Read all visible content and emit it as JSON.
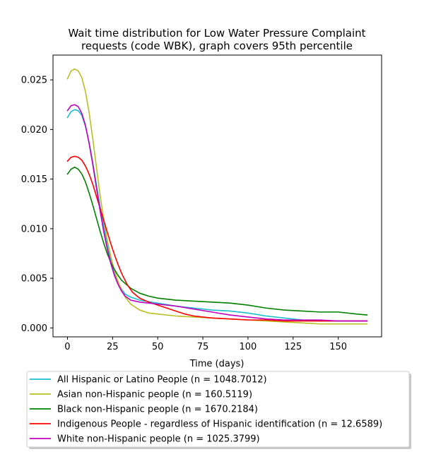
{
  "chart_data": {
    "type": "line",
    "title": "Wait time distribution  for Low Water Pressure Complaint requests (code WBK), graph covers 95th percentile",
    "title_lines": [
      "Wait time distribution  for Low Water Pressure Complaint",
      "requests (code WBK), graph covers 95th percentile"
    ],
    "xlabel": "Time (days)",
    "ylabel": "",
    "xlim": [
      -8,
      174
    ],
    "ylim": [
      -0.0009,
      0.0275
    ],
    "x_ticks": [
      0,
      25,
      50,
      75,
      100,
      125,
      150
    ],
    "y_ticks": [
      0.0,
      0.005,
      0.01,
      0.015,
      0.02,
      0.025
    ],
    "y_tick_labels": [
      "0.000",
      "0.005",
      "0.010",
      "0.015",
      "0.020",
      "0.025"
    ],
    "grid": false,
    "legend_position": "below-plot",
    "series": [
      {
        "name": "All Hispanic or Latino People (n = 1048.7012)",
        "color": "#17becf",
        "points": [
          [
            0,
            0.0212
          ],
          [
            2,
            0.0218
          ],
          [
            4,
            0.022
          ],
          [
            6,
            0.0219
          ],
          [
            8,
            0.0214
          ],
          [
            10,
            0.0203
          ],
          [
            12,
            0.0187
          ],
          [
            14,
            0.0167
          ],
          [
            16,
            0.0145
          ],
          [
            18,
            0.0123
          ],
          [
            20,
            0.0103
          ],
          [
            22,
            0.0085
          ],
          [
            24,
            0.0069
          ],
          [
            26,
            0.0056
          ],
          [
            28,
            0.0046
          ],
          [
            30,
            0.0039
          ],
          [
            32,
            0.0034
          ],
          [
            35,
            0.0031
          ],
          [
            40,
            0.0028
          ],
          [
            50,
            0.0025
          ],
          [
            60,
            0.0022
          ],
          [
            70,
            0.002
          ],
          [
            80,
            0.0018
          ],
          [
            90,
            0.0017
          ],
          [
            100,
            0.0015
          ],
          [
            110,
            0.0012
          ],
          [
            120,
            0.001
          ],
          [
            130,
            0.0008
          ],
          [
            140,
            0.0007
          ],
          [
            150,
            0.0007
          ],
          [
            160,
            0.0007
          ],
          [
            166,
            0.0007
          ]
        ]
      },
      {
        "name": "Asian non-Hispanic people (n = 160.5119)",
        "color": "#bcbd22",
        "points": [
          [
            0,
            0.0251
          ],
          [
            2,
            0.0259
          ],
          [
            4,
            0.0261
          ],
          [
            6,
            0.0259
          ],
          [
            8,
            0.0252
          ],
          [
            10,
            0.0238
          ],
          [
            12,
            0.0217
          ],
          [
            14,
            0.0191
          ],
          [
            16,
            0.0163
          ],
          [
            18,
            0.0135
          ],
          [
            20,
            0.011
          ],
          [
            22,
            0.0089
          ],
          [
            24,
            0.0072
          ],
          [
            26,
            0.0058
          ],
          [
            28,
            0.0047
          ],
          [
            30,
            0.0038
          ],
          [
            32,
            0.0031
          ],
          [
            35,
            0.0024
          ],
          [
            40,
            0.0018
          ],
          [
            45,
            0.0015
          ],
          [
            50,
            0.0014
          ],
          [
            60,
            0.0012
          ],
          [
            70,
            0.0011
          ],
          [
            80,
            0.001
          ],
          [
            90,
            0.0009
          ],
          [
            100,
            0.0008
          ],
          [
            110,
            0.0007
          ],
          [
            120,
            0.0006
          ],
          [
            130,
            0.0005
          ],
          [
            140,
            0.0004
          ],
          [
            150,
            0.0004
          ],
          [
            160,
            0.0004
          ],
          [
            166,
            0.0004
          ]
        ]
      },
      {
        "name": "Black non-Hispanic people (n = 1670.2184)",
        "color": "#008000",
        "points": [
          [
            0,
            0.0155
          ],
          [
            2,
            0.016
          ],
          [
            4,
            0.0162
          ],
          [
            6,
            0.016
          ],
          [
            8,
            0.0155
          ],
          [
            10,
            0.0147
          ],
          [
            12,
            0.0136
          ],
          [
            14,
            0.0124
          ],
          [
            16,
            0.0111
          ],
          [
            18,
            0.0098
          ],
          [
            20,
            0.0086
          ],
          [
            22,
            0.0075
          ],
          [
            24,
            0.0066
          ],
          [
            26,
            0.0059
          ],
          [
            28,
            0.0053
          ],
          [
            30,
            0.0048
          ],
          [
            35,
            0.004
          ],
          [
            40,
            0.0035
          ],
          [
            45,
            0.0032
          ],
          [
            50,
            0.003
          ],
          [
            60,
            0.0028
          ],
          [
            70,
            0.0027
          ],
          [
            80,
            0.0026
          ],
          [
            90,
            0.0025
          ],
          [
            100,
            0.0023
          ],
          [
            110,
            0.002
          ],
          [
            120,
            0.0018
          ],
          [
            130,
            0.0017
          ],
          [
            140,
            0.0016
          ],
          [
            150,
            0.0016
          ],
          [
            160,
            0.0014
          ],
          [
            166,
            0.0013
          ]
        ]
      },
      {
        "name": "Indigenous People - regardless of Hispanic identification (n = 12.6589)",
        "color": "#ff0000",
        "points": [
          [
            0,
            0.0168
          ],
          [
            2,
            0.0172
          ],
          [
            4,
            0.0173
          ],
          [
            6,
            0.0172
          ],
          [
            8,
            0.0169
          ],
          [
            10,
            0.0163
          ],
          [
            12,
            0.0155
          ],
          [
            14,
            0.0145
          ],
          [
            16,
            0.0133
          ],
          [
            18,
            0.0121
          ],
          [
            20,
            0.0109
          ],
          [
            22,
            0.0097
          ],
          [
            24,
            0.0085
          ],
          [
            26,
            0.0074
          ],
          [
            28,
            0.0064
          ],
          [
            30,
            0.0055
          ],
          [
            33,
            0.0044
          ],
          [
            36,
            0.0036
          ],
          [
            40,
            0.003
          ],
          [
            45,
            0.0026
          ],
          [
            50,
            0.0023
          ],
          [
            55,
            0.002
          ],
          [
            60,
            0.0017
          ],
          [
            65,
            0.0014
          ],
          [
            70,
            0.0012
          ],
          [
            75,
            0.0011
          ],
          [
            80,
            0.001
          ],
          [
            90,
            0.0009
          ],
          [
            100,
            0.0008
          ],
          [
            110,
            0.0008
          ],
          [
            120,
            0.0007
          ],
          [
            130,
            0.0007
          ],
          [
            140,
            0.0007
          ],
          [
            150,
            0.0007
          ],
          [
            160,
            0.0007
          ],
          [
            166,
            0.0007
          ]
        ]
      },
      {
        "name": "White non-Hispanic people (n = 1025.3799)",
        "color": "#bf00bf",
        "points": [
          [
            0,
            0.0219
          ],
          [
            2,
            0.0224
          ],
          [
            4,
            0.0225
          ],
          [
            6,
            0.0223
          ],
          [
            8,
            0.0216
          ],
          [
            10,
            0.0204
          ],
          [
            12,
            0.0186
          ],
          [
            14,
            0.0165
          ],
          [
            16,
            0.0142
          ],
          [
            18,
            0.0119
          ],
          [
            20,
            0.0098
          ],
          [
            22,
            0.008
          ],
          [
            24,
            0.0065
          ],
          [
            26,
            0.0053
          ],
          [
            28,
            0.0044
          ],
          [
            30,
            0.0037
          ],
          [
            32,
            0.0032
          ],
          [
            35,
            0.0028
          ],
          [
            40,
            0.0026
          ],
          [
            50,
            0.0024
          ],
          [
            60,
            0.0022
          ],
          [
            70,
            0.0019
          ],
          [
            80,
            0.0016
          ],
          [
            90,
            0.0013
          ],
          [
            100,
            0.0011
          ],
          [
            110,
            0.0009
          ],
          [
            120,
            0.0008
          ],
          [
            130,
            0.0008
          ],
          [
            140,
            0.0008
          ],
          [
            150,
            0.0007
          ],
          [
            160,
            0.0007
          ],
          [
            166,
            0.0007
          ]
        ]
      }
    ]
  }
}
